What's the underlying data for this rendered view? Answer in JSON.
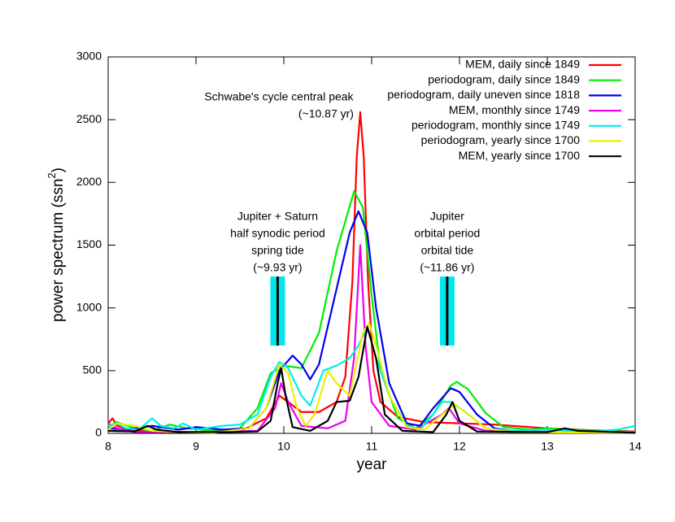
{
  "chart_data": {
    "type": "line",
    "xlabel": "year",
    "ylabel": {
      "text": "power spectrum (ssn",
      "sup": "2",
      "end": ")"
    },
    "xlim": [
      8,
      14
    ],
    "ylim": [
      0,
      3000
    ],
    "xticks": [
      8,
      9,
      10,
      11,
      12,
      13,
      14
    ],
    "yticks": [
      0,
      500,
      1000,
      1500,
      2000,
      2500,
      3000
    ],
    "legend": "top-right",
    "annotations": [
      {
        "x": 10.87,
        "lines": [
          "Schwabe's cycle central peak",
          "(~10.87 yr)"
        ]
      },
      {
        "x": 9.93,
        "lines": [
          "Jupiter + Saturn",
          "half synodic period",
          "spring tide",
          "(~9.93 yr)"
        ]
      },
      {
        "x": 11.86,
        "lines": [
          "Jupiter",
          "orbital period",
          "orbital tide",
          "(~11.86 yr)"
        ]
      }
    ],
    "bands": [
      {
        "x": 9.93,
        "ylim": [
          700,
          1250
        ],
        "color": "#00e5ee"
      },
      {
        "x": 11.86,
        "ylim": [
          700,
          1250
        ],
        "color": "#00e5ee"
      }
    ],
    "series": [
      {
        "name": "MEM, daily since 1849",
        "color": "#ff0000",
        "x": [
          8,
          8.05,
          8.1,
          8.3,
          8.6,
          9,
          9.5,
          9.8,
          9.95,
          10.05,
          10.2,
          10.4,
          10.6,
          10.7,
          10.78,
          10.83,
          10.87,
          10.91,
          10.96,
          11.02,
          11.1,
          11.3,
          11.6,
          12,
          12.4,
          13,
          13.5,
          14
        ],
        "values": [
          80,
          120,
          60,
          20,
          15,
          10,
          15,
          120,
          300,
          250,
          170,
          170,
          250,
          450,
          1200,
          2200,
          2560,
          2200,
          1200,
          500,
          250,
          130,
          90,
          80,
          70,
          40,
          25,
          15
        ]
      },
      {
        "name": "periodogram, daily since 1849",
        "color": "#00ee00",
        "x": [
          8,
          8.1,
          8.3,
          8.5,
          8.7,
          8.9,
          9.2,
          9.5,
          9.7,
          9.85,
          10,
          10.2,
          10.4,
          10.6,
          10.8,
          10.9,
          11,
          11.1,
          11.3,
          11.5,
          11.7,
          11.9,
          11.97,
          12.1,
          12.3,
          12.5,
          12.8,
          13,
          13.3,
          13.6,
          14
        ],
        "values": [
          50,
          90,
          40,
          20,
          70,
          40,
          20,
          40,
          200,
          480,
          540,
          520,
          800,
          1450,
          1930,
          1800,
          1100,
          500,
          120,
          40,
          150,
          380,
          410,
          350,
          160,
          50,
          30,
          40,
          30,
          20,
          10
        ]
      },
      {
        "name": "periodogram, daily uneven since 1818",
        "color": "#0000ee",
        "x": [
          8,
          8.2,
          8.5,
          8.8,
          9,
          9.3,
          9.6,
          9.8,
          9.95,
          10.1,
          10.2,
          10.3,
          10.4,
          10.6,
          10.75,
          10.85,
          10.95,
          11.05,
          11.2,
          11.4,
          11.55,
          11.7,
          11.9,
          12,
          12.2,
          12.4,
          12.7,
          13,
          14
        ],
        "values": [
          40,
          30,
          60,
          30,
          50,
          30,
          40,
          200,
          500,
          620,
          550,
          430,
          550,
          1150,
          1600,
          1770,
          1600,
          1000,
          400,
          80,
          60,
          200,
          360,
          330,
          150,
          40,
          10,
          10,
          5
        ]
      },
      {
        "name": "MEM, monthly since 1749",
        "color": "#ee00ee",
        "x": [
          8,
          8.1,
          8.3,
          9,
          9.7,
          9.9,
          9.97,
          10.05,
          10.2,
          10.5,
          10.7,
          10.8,
          10.87,
          10.93,
          11,
          11.2,
          11.5,
          11.8,
          11.88,
          12,
          12.3,
          13,
          14
        ],
        "values": [
          80,
          40,
          10,
          10,
          20,
          200,
          400,
          250,
          60,
          40,
          100,
          600,
          1500,
          700,
          250,
          60,
          30,
          150,
          200,
          80,
          20,
          10,
          5
        ]
      },
      {
        "name": "periodogram, monthly since 1749",
        "color": "#00eeee",
        "x": [
          8,
          8.1,
          8.2,
          8.35,
          8.5,
          8.6,
          8.75,
          8.85,
          9,
          9.3,
          9.5,
          9.7,
          9.85,
          9.95,
          10.05,
          10.2,
          10.3,
          10.45,
          10.6,
          10.75,
          10.85,
          10.95,
          11.05,
          11.2,
          11.4,
          11.55,
          11.7,
          11.8,
          11.9,
          12.05,
          12.3,
          12.6,
          13,
          13.5,
          13.8,
          14
        ],
        "values": [
          60,
          80,
          40,
          30,
          120,
          60,
          40,
          80,
          30,
          60,
          70,
          150,
          450,
          570,
          520,
          300,
          220,
          500,
          540,
          600,
          700,
          850,
          600,
          300,
          60,
          30,
          150,
          250,
          250,
          180,
          40,
          20,
          30,
          15,
          30,
          60
        ]
      },
      {
        "name": "periodogram, yearly since 1700",
        "color": "#eeee00",
        "x": [
          8,
          8.1,
          8.3,
          8.5,
          8.8,
          9.2,
          9.6,
          9.8,
          9.95,
          10.05,
          10.15,
          10.25,
          10.35,
          10.5,
          10.6,
          10.75,
          10.9,
          10.97,
          11.05,
          11.2,
          11.4,
          11.6,
          11.75,
          11.95,
          12.1,
          12.3,
          12.6,
          14
        ],
        "values": [
          30,
          80,
          60,
          20,
          10,
          5,
          40,
          200,
          550,
          480,
          200,
          60,
          150,
          500,
          400,
          300,
          800,
          880,
          700,
          300,
          50,
          30,
          120,
          230,
          150,
          40,
          10,
          5
        ]
      },
      {
        "name": "MEM, yearly since 1700",
        "color": "#000000",
        "x": [
          8,
          8.3,
          8.45,
          8.55,
          8.8,
          9.4,
          9.7,
          9.85,
          9.93,
          9.97,
          10.02,
          10.1,
          10.3,
          10.5,
          10.6,
          10.75,
          10.85,
          10.95,
          11.05,
          11.15,
          11.35,
          11.7,
          11.85,
          11.92,
          12,
          12.2,
          13,
          13.2,
          13.35,
          14
        ],
        "values": [
          20,
          15,
          60,
          30,
          10,
          10,
          15,
          100,
          400,
          520,
          300,
          50,
          20,
          100,
          250,
          260,
          450,
          850,
          600,
          150,
          20,
          10,
          150,
          250,
          100,
          15,
          10,
          40,
          20,
          5
        ]
      }
    ]
  }
}
